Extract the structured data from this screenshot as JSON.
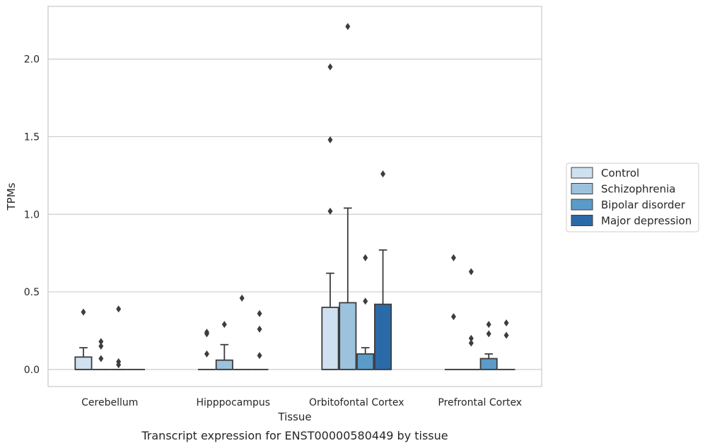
{
  "chart_data": {
    "type": "box",
    "caption": "Transcript expression for ENST00000580449 by tissue",
    "xlabel": "Tissue",
    "ylabel": "TPMs",
    "ylim": [
      -0.11,
      2.34
    ],
    "yticks": [
      0.0,
      0.5,
      1.0,
      1.5,
      2.0
    ],
    "ytick_labels": [
      "0.0",
      "0.5",
      "1.0",
      "1.5",
      "2.0"
    ],
    "grid": "horizontal",
    "legend_position": "right",
    "categories": [
      "Cerebellum",
      "Hipppocampus",
      "Orbitofontal Cortex",
      "Prefrontal Cortex"
    ],
    "series": [
      {
        "name": "Control",
        "color": "#cfe0f1",
        "boxes": [
          {
            "q1": 0.0,
            "median": 0.0,
            "q3": 0.08,
            "whislo": 0.0,
            "whishi": 0.14,
            "fliers": [
              0.37
            ]
          },
          {
            "q1": 0.0,
            "median": 0.0,
            "q3": 0.0,
            "whislo": 0.0,
            "whishi": 0.0,
            "fliers": [
              0.1,
              0.23,
              0.24
            ]
          },
          {
            "q1": 0.0,
            "median": 0.0,
            "q3": 0.4,
            "whislo": 0.0,
            "whishi": 0.62,
            "fliers": [
              1.02,
              1.48,
              1.95
            ]
          },
          {
            "q1": 0.0,
            "median": 0.0,
            "q3": 0.0,
            "whislo": 0.0,
            "whishi": 0.0,
            "fliers": [
              0.34,
              0.72
            ]
          }
        ]
      },
      {
        "name": "Schizophrenia",
        "color": "#9cc2dd",
        "boxes": [
          {
            "q1": 0.0,
            "median": 0.0,
            "q3": 0.0,
            "whislo": 0.0,
            "whishi": 0.0,
            "fliers": [
              0.07,
              0.15,
              0.18
            ]
          },
          {
            "q1": 0.0,
            "median": 0.0,
            "q3": 0.06,
            "whislo": 0.0,
            "whishi": 0.16,
            "fliers": [
              0.29
            ]
          },
          {
            "q1": 0.0,
            "median": 0.0,
            "q3": 0.43,
            "whislo": 0.0,
            "whishi": 1.04,
            "fliers": [
              2.21
            ]
          },
          {
            "q1": 0.0,
            "median": 0.0,
            "q3": 0.0,
            "whislo": 0.0,
            "whishi": 0.0,
            "fliers": [
              0.17,
              0.2,
              0.63
            ]
          }
        ]
      },
      {
        "name": "Bipolar disorder",
        "color": "#5a9bc9",
        "boxes": [
          {
            "q1": 0.0,
            "median": 0.0,
            "q3": 0.0,
            "whislo": 0.0,
            "whishi": 0.0,
            "fliers": [
              0.03,
              0.05,
              0.39
            ]
          },
          {
            "q1": 0.0,
            "median": 0.0,
            "q3": 0.0,
            "whislo": 0.0,
            "whishi": 0.0,
            "fliers": [
              0.46
            ]
          },
          {
            "q1": 0.0,
            "median": 0.0,
            "q3": 0.1,
            "whislo": 0.0,
            "whishi": 0.14,
            "fliers": [
              0.44,
              0.72
            ]
          },
          {
            "q1": 0.0,
            "median": 0.0,
            "q3": 0.07,
            "whislo": 0.0,
            "whishi": 0.1,
            "fliers": [
              0.23,
              0.29
            ]
          }
        ]
      },
      {
        "name": "Major depression",
        "color": "#2b6aa8",
        "boxes": [
          {
            "q1": 0.0,
            "median": 0.0,
            "q3": 0.0,
            "whislo": 0.0,
            "whishi": 0.0,
            "fliers": []
          },
          {
            "q1": 0.0,
            "median": 0.0,
            "q3": 0.0,
            "whislo": 0.0,
            "whishi": 0.0,
            "fliers": [
              0.09,
              0.26,
              0.36
            ]
          },
          {
            "q1": 0.0,
            "median": 0.0,
            "q3": 0.42,
            "whislo": 0.0,
            "whishi": 0.77,
            "fliers": [
              1.26
            ]
          },
          {
            "q1": 0.0,
            "median": 0.0,
            "q3": 0.0,
            "whislo": 0.0,
            "whishi": 0.0,
            "fliers": [
              0.22,
              0.3
            ]
          }
        ]
      }
    ]
  }
}
